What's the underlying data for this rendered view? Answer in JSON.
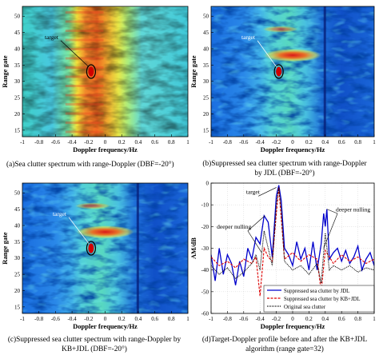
{
  "chart_data": [
    {
      "type": "heatmap",
      "caption": "(a)Sea clutter spectrum with range-Doppler (DBF=-20°)",
      "xlabel": "Doppler frequency/Hz",
      "ylabel": "Range gate",
      "xlim": [
        -1,
        1
      ],
      "ylim": [
        13,
        53
      ],
      "xticks": [
        "-1",
        "-0.8",
        "-0.6",
        "-0.4",
        "-0.2",
        "0",
        "0.2",
        "0.4",
        "0.6",
        "0.8",
        "1"
      ],
      "yticks": [
        "15",
        "20",
        "25",
        "30",
        "35",
        "40",
        "45",
        "50"
      ],
      "annotation": {
        "text": "target",
        "x": -0.17,
        "y": 33
      },
      "colormap": "jet"
    },
    {
      "type": "heatmap",
      "caption": "(b)Suppressed sea clutter spectrum with range-Doppler by JDL (DBF=-20°)",
      "xlabel": "Doppler frequency/Hz",
      "ylabel": "Range gate",
      "xlim": [
        -1,
        1
      ],
      "ylim": [
        13,
        53
      ],
      "xticks": [
        "-1",
        "-0.8",
        "-0.6",
        "-0.4",
        "-0.2",
        "0",
        "0.2",
        "0.4",
        "0.6",
        "0.8",
        "1"
      ],
      "yticks": [
        "15",
        "20",
        "25",
        "30",
        "35",
        "40",
        "45",
        "50"
      ],
      "annotation": {
        "text": "target",
        "x": -0.17,
        "y": 33
      },
      "colormap": "jet"
    },
    {
      "type": "heatmap",
      "caption": "(c)Suppressed sea clutter spectrum with range-Doppler by KB+JDL (DBF=-20°)",
      "xlabel": "Doppler frequency/Hz",
      "ylabel": "Range gate",
      "xlim": [
        -1,
        1
      ],
      "ylim": [
        13,
        53
      ],
      "xticks": [
        "-1",
        "-0.8",
        "-0.6",
        "-0.4",
        "-0.2",
        "0",
        "0.2",
        "0.4",
        "0.6",
        "0.8",
        "1"
      ],
      "yticks": [
        "15",
        "20",
        "25",
        "30",
        "35",
        "40",
        "45",
        "50"
      ],
      "annotation": {
        "text": "target",
        "x": -0.17,
        "y": 33
      },
      "colormap": "jet"
    },
    {
      "type": "line",
      "caption": "(d)Target-Doppler profile before and after the KB+JDL algorithm (range gate=32)",
      "xlabel": "Doppler frequency/Hz",
      "ylabel": "AM/dB",
      "xlim": [
        -1,
        1
      ],
      "ylim": [
        -60,
        0
      ],
      "xticks": [
        "-1",
        "-0.8",
        "-0.6",
        "-0.4",
        "-0.2",
        "0",
        "0.2",
        "0.4",
        "0.6",
        "0.8",
        "1"
      ],
      "yticks": [
        "0",
        "-10",
        "-20",
        "-30",
        "-40",
        "-50",
        "-60"
      ],
      "annotations": [
        {
          "text": "target",
          "x": -0.17,
          "y": -1
        },
        {
          "text": "deeper nulling",
          "x": -0.35,
          "y": -22
        },
        {
          "text": "deeper nulling",
          "x": 0.4,
          "y": -22
        }
      ],
      "legend": {
        "placement": "bottom-right",
        "entries": [
          "Suppressed sea clutter by JDL",
          "Suppressed sea clutter by KB+JDL",
          "Original sea clutter"
        ]
      },
      "series": [
        {
          "name": "Original sea clutter",
          "color": "#0000cc",
          "style": "solid",
          "x": [
            -1,
            -0.95,
            -0.9,
            -0.85,
            -0.8,
            -0.75,
            -0.7,
            -0.65,
            -0.6,
            -0.55,
            -0.5,
            -0.45,
            -0.4,
            -0.35,
            -0.3,
            -0.25,
            -0.2,
            -0.17,
            -0.14,
            -0.1,
            -0.05,
            0,
            0.05,
            0.1,
            0.15,
            0.2,
            0.25,
            0.3,
            0.35,
            0.38,
            0.4,
            0.42,
            0.45,
            0.5,
            0.55,
            0.6,
            0.65,
            0.7,
            0.75,
            0.8,
            0.85,
            0.9,
            0.95,
            1
          ],
          "y": [
            -33,
            -45,
            -30,
            -42,
            -33,
            -37,
            -47,
            -36,
            -43,
            -30,
            -35,
            -25,
            -28,
            -15,
            -18,
            -34,
            -6,
            -1,
            -8,
            -30,
            -33,
            -38,
            -27,
            -35,
            -30,
            -40,
            -27,
            -40,
            -28,
            -14,
            -20,
            -12,
            -35,
            -32,
            -30,
            -36,
            -31,
            -37,
            -34,
            -29,
            -40,
            -35,
            -32,
            -38
          ]
        },
        {
          "name": "Suppressed sea clutter by JDL",
          "color": "#000000",
          "style": "dotted",
          "x": [
            -1,
            -0.9,
            -0.8,
            -0.7,
            -0.6,
            -0.5,
            -0.45,
            -0.4,
            -0.35,
            -0.3,
            -0.25,
            -0.2,
            -0.17,
            -0.14,
            -0.1,
            0,
            0.1,
            0.2,
            0.3,
            0.35,
            0.4,
            0.45,
            0.5,
            0.6,
            0.7,
            0.8,
            0.9,
            1
          ],
          "y": [
            -38,
            -42,
            -39,
            -44,
            -41,
            -37,
            -33,
            -40,
            -22,
            -30,
            -38,
            -10,
            -2,
            -12,
            -36,
            -40,
            -38,
            -42,
            -37,
            -46,
            -23,
            -40,
            -38,
            -40,
            -38,
            -41,
            -39,
            -40
          ]
        },
        {
          "name": "Suppressed sea clutter by KB+JDL",
          "color": "#dd0000",
          "style": "dashed",
          "x": [
            -1,
            -0.9,
            -0.8,
            -0.7,
            -0.6,
            -0.5,
            -0.45,
            -0.4,
            -0.35,
            -0.3,
            -0.25,
            -0.2,
            -0.17,
            -0.14,
            -0.1,
            0,
            0.1,
            0.2,
            0.3,
            0.35,
            0.4,
            0.45,
            0.5,
            0.6,
            0.7,
            0.8,
            0.9,
            1
          ],
          "y": [
            -34,
            -38,
            -36,
            -39,
            -35,
            -37,
            -34,
            -52,
            -30,
            -34,
            -36,
            -14,
            -2,
            -16,
            -35,
            -32,
            -36,
            -33,
            -35,
            -50,
            -31,
            -34,
            -37,
            -33,
            -36,
            -34,
            -37,
            -35
          ]
        }
      ]
    }
  ]
}
